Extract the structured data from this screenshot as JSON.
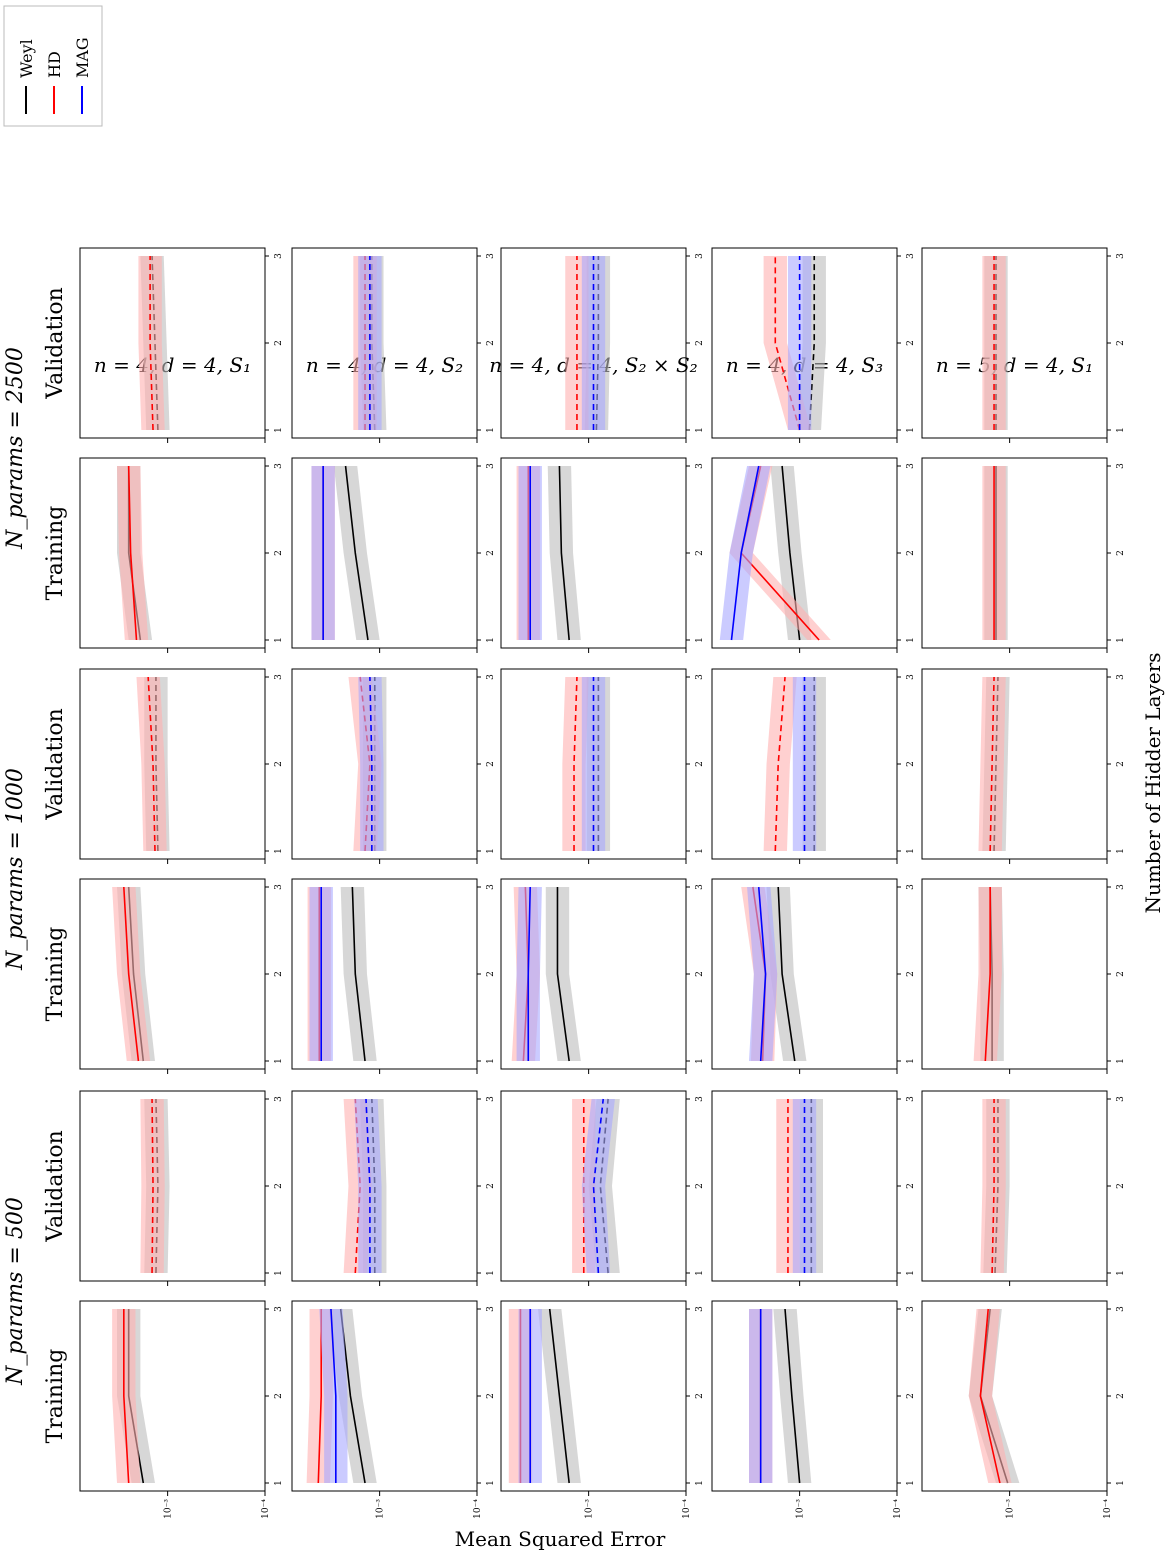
{
  "figure": {
    "ylabel": "Mean Squared Error",
    "xlabel": "Number of Hidder Layers",
    "legend": [
      "Weyl",
      "HD",
      "MAG"
    ],
    "colors": {
      "Weyl": "#000000",
      "HD": "#ff0000",
      "MAG": "#0000ff",
      "Weyl_band": "#bdbdbd",
      "HD_band": "#ffb0b0",
      "MAG_band": "#a8a8ff"
    },
    "yticks": [
      "10⁻³",
      "10⁻⁴"
    ],
    "xticks": [
      "1",
      "2",
      "3"
    ],
    "param_groups": [
      "N_params = 500",
      "N_params = 1000",
      "N_params = 2500"
    ],
    "panel_titles": [
      "Training",
      "Validation"
    ],
    "row_labels": [
      "n = 4, d = 4, S₁",
      "n = 4, d = 4, S₂",
      "n = 4, d = 4, S₂ × S₂",
      "n = 4, d = 4, S₃",
      "n = 5, d = 4, S₁"
    ]
  },
  "chart_data": {
    "type": "line",
    "x": [
      1,
      2,
      3
    ],
    "yscale": "log",
    "ylim": [
      0.0001,
      0.01
    ],
    "legend_position": "top-right",
    "note": "log10 MSE per panel; rows = (n,d,group), columns = N_params x {Training, Validation}; Validation = dashed",
    "panels": [
      {
        "row": 0,
        "col": 0,
        "Weyl": [
          -2.75,
          -2.6,
          -2.6
        ],
        "HD": [
          -2.6,
          -2.55,
          -2.55
        ]
      },
      {
        "row": 0,
        "col": 1,
        "Weyl": [
          -2.88,
          -2.9,
          -2.88
        ],
        "HD": [
          -2.84,
          -2.85,
          -2.84
        ]
      },
      {
        "row": 0,
        "col": 2,
        "Weyl": [
          -2.75,
          -2.65,
          -2.6
        ],
        "HD": [
          -2.7,
          -2.6,
          -2.55
        ]
      },
      {
        "row": 0,
        "col": 3,
        "Weyl": [
          -2.9,
          -2.88,
          -2.88
        ],
        "HD": [
          -2.87,
          -2.85,
          -2.8
        ]
      },
      {
        "row": 0,
        "col": 4,
        "Weyl": [
          -2.72,
          -2.6,
          -2.6
        ],
        "HD": [
          -2.68,
          -2.62,
          -2.6
        ]
      },
      {
        "row": 0,
        "col": 5,
        "Weyl": [
          -2.9,
          -2.87,
          -2.84
        ],
        "HD": [
          -2.85,
          -2.82,
          -2.82
        ]
      },
      {
        "row": 1,
        "col": 0,
        "Weyl": [
          -2.85,
          -2.7,
          -2.6
        ],
        "HD": [
          -2.37,
          -2.4,
          -2.4
        ],
        "MAG": [
          -2.55,
          -2.55,
          -2.5
        ]
      },
      {
        "row": 1,
        "col": 1,
        "Weyl": [
          -2.95,
          -2.95,
          -2.92
        ],
        "HD": [
          -2.75,
          -2.8,
          -2.75
        ],
        "MAG": [
          -2.9,
          -2.9,
          -2.86
        ]
      },
      {
        "row": 1,
        "col": 2,
        "Weyl": [
          -2.85,
          -2.75,
          -2.72
        ],
        "HD": [
          -2.38,
          -2.38,
          -2.38
        ],
        "MAG": [
          -2.4,
          -2.4,
          -2.4
        ]
      },
      {
        "row": 1,
        "col": 3,
        "Weyl": [
          -2.95,
          -2.95,
          -2.95
        ],
        "HD": [
          -2.85,
          -2.9,
          -2.8
        ],
        "MAG": [
          -2.92,
          -2.92,
          -2.9
        ]
      },
      {
        "row": 1,
        "col": 4,
        "Weyl": [
          -2.88,
          -2.75,
          -2.65
        ],
        "HD": [
          -2.42,
          -2.42,
          -2.42
        ],
        "MAG": [
          -2.42,
          -2.42,
          -2.42
        ]
      },
      {
        "row": 1,
        "col": 5,
        "Weyl": [
          -2.95,
          -2.92,
          -2.92
        ],
        "HD": [
          -2.85,
          -2.85,
          -2.85
        ],
        "MAG": [
          -2.9,
          -2.9,
          -2.9
        ]
      },
      {
        "row": 2,
        "col": 0,
        "Weyl": [
          -2.8,
          -2.7,
          -2.6
        ],
        "HD": [
          -2.3,
          -2.3,
          -2.3
        ],
        "MAG": [
          -2.4,
          -2.4,
          -2.4
        ]
      },
      {
        "row": 2,
        "col": 1,
        "Weyl": [
          -3.2,
          -3.12,
          -3.2
        ],
        "HD": [
          -2.95,
          -2.95,
          -2.95
        ],
        "MAG": [
          -3.1,
          -3.05,
          -3.15
        ]
      },
      {
        "row": 2,
        "col": 2,
        "Weyl": [
          -2.8,
          -2.68,
          -2.68
        ],
        "HD": [
          -2.33,
          -2.38,
          -2.35
        ],
        "MAG": [
          -2.38,
          -2.38,
          -2.4
        ]
      },
      {
        "row": 2,
        "col": 3,
        "Weyl": [
          -3.1,
          -3.1,
          -3.1
        ],
        "HD": [
          -2.85,
          -2.85,
          -2.88
        ],
        "MAG": [
          -3.05,
          -3.05,
          -3.05
        ]
      },
      {
        "row": 2,
        "col": 4,
        "Weyl": [
          -2.8,
          -2.72,
          -2.7
        ],
        "HD": [
          -2.38,
          -2.38,
          -2.38
        ],
        "MAG": [
          -2.4,
          -2.4,
          -2.4
        ]
      },
      {
        "row": 2,
        "col": 5,
        "Weyl": [
          -3.08,
          -3.1,
          -3.1
        ],
        "HD": [
          -2.88,
          -2.88,
          -2.88
        ],
        "MAG": [
          -3.05,
          -3.05,
          -3.05
        ]
      },
      {
        "row": 3,
        "col": 0,
        "Weyl": [
          -3.0,
          -2.92,
          -2.85
        ],
        "HD": [
          -2.6,
          -2.6,
          -2.6
        ],
        "MAG": [
          -2.6,
          -2.6,
          -2.6
        ]
      },
      {
        "row": 3,
        "col": 1,
        "Weyl": [
          -3.12,
          -3.12,
          -3.12
        ],
        "HD": [
          -2.88,
          -2.88,
          -2.88
        ],
        "MAG": [
          -3.05,
          -3.05,
          -3.05
        ]
      },
      {
        "row": 3,
        "col": 2,
        "Weyl": [
          -2.95,
          -2.82,
          -2.78
        ],
        "HD": [
          -2.62,
          -2.65,
          -2.52
        ],
        "MAG": [
          -2.6,
          -2.65,
          -2.58
        ]
      },
      {
        "row": 3,
        "col": 3,
        "Weyl": [
          -3.15,
          -3.15,
          -3.15
        ],
        "HD": [
          -2.75,
          -2.78,
          -2.85
        ],
        "MAG": [
          -3.05,
          -3.05,
          -3.05
        ]
      },
      {
        "row": 3,
        "col": 4,
        "Weyl": [
          -3.0,
          -2.9,
          -2.82
        ],
        "HD": [
          -3.2,
          -2.4,
          -2.6
        ],
        "MAG": [
          -2.3,
          -2.4,
          -2.58
        ]
      },
      {
        "row": 3,
        "col": 5,
        "Weyl": [
          -3.1,
          -3.15,
          -3.15
        ],
        "HD": [
          -3.0,
          -2.75,
          -2.75
        ],
        "MAG": [
          -3.0,
          -3.0,
          -3.0
        ]
      },
      {
        "row": 4,
        "col": 0,
        "Weyl": [
          -2.98,
          -2.7,
          -2.8
        ],
        "HD": [
          -2.9,
          -2.7,
          -2.78
        ]
      },
      {
        "row": 4,
        "col": 1,
        "Weyl": [
          -2.85,
          -2.88,
          -2.88
        ],
        "HD": [
          -2.82,
          -2.84,
          -2.84
        ]
      },
      {
        "row": 4,
        "col": 2,
        "Weyl": [
          -2.82,
          -2.82,
          -2.8
        ],
        "HD": [
          -2.75,
          -2.8,
          -2.8
        ]
      },
      {
        "row": 4,
        "col": 3,
        "Weyl": [
          -2.84,
          -2.86,
          -2.88
        ],
        "HD": [
          -2.8,
          -2.82,
          -2.84
        ]
      },
      {
        "row": 4,
        "col": 4,
        "Weyl": [
          -2.86,
          -2.86,
          -2.86
        ],
        "HD": [
          -2.84,
          -2.84,
          -2.84
        ]
      },
      {
        "row": 4,
        "col": 5,
        "Weyl": [
          -2.86,
          -2.86,
          -2.86
        ],
        "HD": [
          -2.84,
          -2.84,
          -2.84
        ]
      }
    ]
  }
}
